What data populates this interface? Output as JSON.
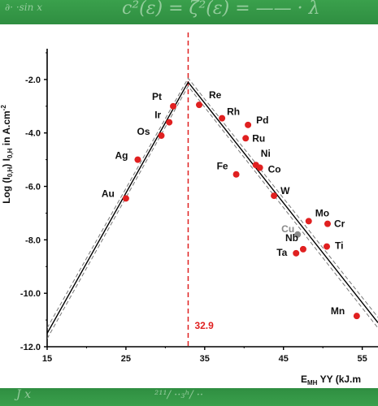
{
  "chart_data": {
    "type": "scatter",
    "title": "",
    "xlabel_main": "E",
    "xlabel_sub": "MH",
    "xlabel_rest": " YY (kJ.m",
    "ylabel": "Log (I",
    "ylabel_sub1": "0,H",
    "ylabel_rest": ")  I",
    "ylabel_sub2": "0,H",
    "ylabel_units": " in A.cm",
    "ylabel_sup": "-2",
    "xlim": [
      15,
      57
    ],
    "ylim": [
      -12.0,
      -1.0
    ],
    "x_ticks": [
      "15",
      "25",
      "35",
      "45",
      "55"
    ],
    "x_tick_values": [
      15,
      25,
      35,
      45,
      55
    ],
    "y_ticks": [
      "-2.0",
      "-4.0",
      "-6.0",
      "-8.0",
      "-10.0",
      "-12.0"
    ],
    "y_tick_values": [
      -2,
      -4,
      -6,
      -8,
      -10,
      -12
    ],
    "vertical_line": {
      "x": 32.9,
      "label": "32.9",
      "color": "#e02020"
    },
    "volcano_lines": {
      "solid": [
        [
          15,
          -11.5
        ],
        [
          32.9,
          -2.1
        ],
        [
          57,
          -11.1
        ]
      ],
      "dashed_upper": [
        [
          15,
          -11.3
        ],
        [
          32.9,
          -1.95
        ],
        [
          57,
          -10.9
        ]
      ],
      "dashed_lower": [
        [
          15,
          -11.7
        ],
        [
          32.9,
          -2.25
        ],
        [
          57,
          -11.3
        ]
      ]
    },
    "points": [
      {
        "label": "Au",
        "x": 25.0,
        "y": -6.45,
        "color": "#e02020"
      },
      {
        "label": "Ag",
        "x": 26.5,
        "y": -5.0,
        "color": "#e02020"
      },
      {
        "label": "Os",
        "x": 29.5,
        "y": -4.1,
        "color": "#e02020"
      },
      {
        "label": "Ir",
        "x": 30.5,
        "y": -3.6,
        "color": "#e02020"
      },
      {
        "label": "Pt",
        "x": 31.0,
        "y": -3.0,
        "color": "#e02020"
      },
      {
        "label": "Re",
        "x": 34.3,
        "y": -2.95,
        "color": "#e02020"
      },
      {
        "label": "Rh",
        "x": 37.2,
        "y": -3.45,
        "color": "#e02020"
      },
      {
        "label": "Pd",
        "x": 40.5,
        "y": -3.7,
        "color": "#e02020"
      },
      {
        "label": "Ru",
        "x": 40.2,
        "y": -4.2,
        "color": "#e02020"
      },
      {
        "label": "Fe",
        "x": 39.0,
        "y": -5.55,
        "color": "#e02020"
      },
      {
        "label": "Ni",
        "x": 41.5,
        "y": -5.2,
        "color": "#e02020"
      },
      {
        "label": "Co",
        "x": 42.0,
        "y": -5.3,
        "color": "#e02020"
      },
      {
        "label": "W",
        "x": 43.8,
        "y": -6.35,
        "color": "#e02020"
      },
      {
        "label": "Mo",
        "x": 48.2,
        "y": -7.3,
        "color": "#e02020"
      },
      {
        "label": "Cr",
        "x": 50.6,
        "y": -7.4,
        "color": "#e02020"
      },
      {
        "label": "Cu",
        "x": 46.8,
        "y": -7.8,
        "color": "#8a8a8a"
      },
      {
        "label": "Nb",
        "x": 47.5,
        "y": -8.35,
        "color": "#e02020"
      },
      {
        "label": "Ta",
        "x": 46.6,
        "y": -8.5,
        "color": "#e02020"
      },
      {
        "label": "Ti",
        "x": 50.5,
        "y": -8.25,
        "color": "#e02020"
      },
      {
        "label": "Mn",
        "x": 54.3,
        "y": -10.85,
        "color": "#e02020"
      }
    ]
  }
}
